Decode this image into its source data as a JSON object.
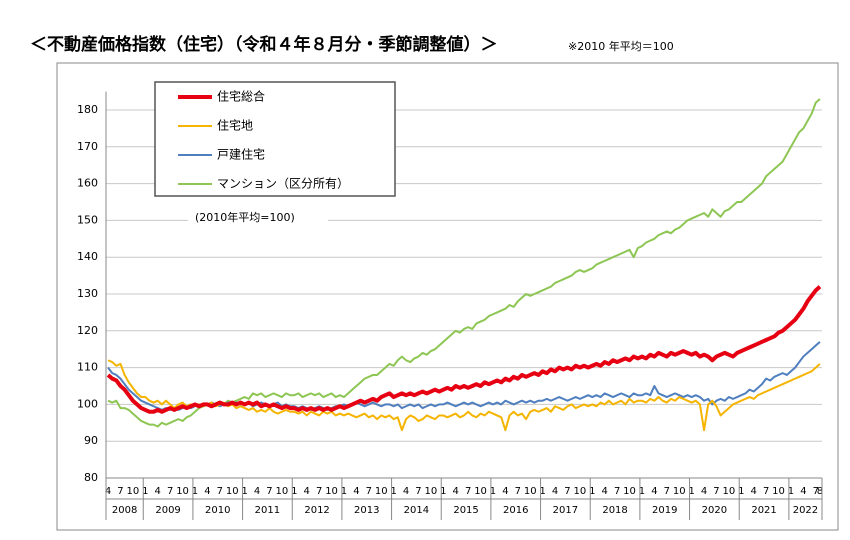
{
  "chart_data": {
    "type": "line",
    "title": "＜不動産価格指数（住宅）（令和４年８月分・季節調整値）＞",
    "subtitle": "※2010 年平均＝100",
    "annotation": "(2010年平均=100)",
    "categories": [
      "4",
      null,
      null,
      "7",
      null,
      null,
      "10",
      null,
      null,
      "1",
      null,
      null,
      "4",
      null,
      null,
      "7",
      null,
      null,
      "10",
      null,
      null,
      "1",
      null,
      null,
      "4",
      null,
      null,
      "7",
      null,
      null,
      "10",
      null,
      null,
      "1",
      null,
      null,
      "4",
      null,
      null,
      "7",
      null,
      null,
      "10",
      null,
      null,
      "1",
      null,
      null,
      "4",
      null,
      null,
      "7",
      null,
      null,
      "10",
      null,
      null,
      "1",
      null,
      null,
      "4",
      null,
      null,
      "7",
      null,
      null,
      "10",
      null,
      null,
      "1",
      null,
      null,
      "4",
      null,
      null,
      "7",
      null,
      null,
      "10",
      null,
      null,
      "1",
      null,
      null,
      "4",
      null,
      null,
      "7",
      null,
      null,
      "10",
      null,
      null,
      "1",
      null,
      null,
      "4",
      null,
      null,
      "7",
      null,
      null,
      "10",
      null,
      null,
      "1",
      null,
      null,
      "4",
      null,
      null,
      "7",
      null,
      null,
      "10",
      null,
      null,
      "1",
      null,
      null,
      "4",
      null,
      null,
      "7",
      null,
      null,
      "10",
      null,
      null,
      "1",
      null,
      null,
      "4",
      null,
      null,
      "7",
      null,
      null,
      "10",
      null,
      null,
      "1",
      null,
      null,
      "4",
      null,
      null,
      "7",
      null,
      null,
      "10",
      null,
      null,
      "1",
      null,
      null,
      "4",
      null,
      null,
      "7",
      null,
      null,
      "10",
      null,
      null,
      "1",
      null,
      null,
      "4",
      null,
      null,
      "7",
      "8"
    ],
    "years": [
      "2008",
      "2009",
      "2010",
      "2011",
      "2012",
      "2013",
      "2014",
      "2015",
      "2016",
      "2017",
      "2018",
      "2019",
      "2020",
      "2021",
      "2022"
    ],
    "ylim": [
      80,
      185
    ],
    "yticks": [
      80,
      90,
      100,
      110,
      120,
      130,
      140,
      150,
      160,
      170,
      180
    ],
    "grid": true,
    "series": [
      {
        "name": "住宅総合",
        "color": "#e60012",
        "width": 4,
        "values": [
          108,
          107,
          106.5,
          105,
          104,
          102.5,
          101,
          100,
          99,
          98.5,
          98,
          98,
          98.5,
          98,
          98.5,
          99,
          98.5,
          99,
          99.5,
          99,
          99.5,
          100,
          99.5,
          100,
          100,
          99.5,
          100,
          100.5,
          100,
          100,
          100.5,
          100,
          100.5,
          100,
          100.5,
          100,
          100.5,
          99.5,
          100,
          99.5,
          100,
          99.5,
          99,
          99.5,
          99,
          99,
          98.5,
          99,
          98.5,
          99,
          98.5,
          99,
          98.5,
          99,
          98.5,
          99,
          99.5,
          99,
          99.5,
          100,
          100.5,
          101,
          100.5,
          101,
          101.5,
          101,
          102,
          102.5,
          103,
          102,
          102.5,
          103,
          102.5,
          103,
          102.5,
          103,
          103.5,
          103,
          103.5,
          104,
          103.5,
          104,
          104.5,
          104,
          105,
          104.5,
          105,
          104.5,
          105,
          105.5,
          105,
          106,
          105.5,
          106,
          106.5,
          106,
          107,
          106.5,
          107.5,
          107,
          108,
          107.5,
          108,
          108.5,
          108,
          109,
          108.5,
          109.5,
          109,
          110,
          109.5,
          110,
          109.5,
          110.5,
          110,
          110.5,
          110,
          110.5,
          111,
          110.5,
          111.5,
          111,
          112,
          111.5,
          112,
          112.5,
          112,
          113,
          112.5,
          113,
          112.5,
          113.5,
          113,
          114,
          113.5,
          113,
          114,
          113.5,
          114,
          114.5,
          114,
          113.5,
          114,
          113,
          113.5,
          113,
          112,
          113,
          113.5,
          114,
          113.5,
          113,
          114,
          114.5,
          115,
          115.5,
          116,
          116.5,
          117,
          117.5,
          118,
          118.5,
          119.5,
          120,
          121,
          122,
          123,
          124.5,
          126,
          128,
          129.5,
          131,
          132
        ]
      },
      {
        "name": "住宅地",
        "color": "#f5b400",
        "width": 2,
        "values": [
          112,
          111.5,
          110.5,
          111,
          108,
          106,
          104.5,
          103,
          102,
          102,
          101,
          100.5,
          101,
          100,
          101,
          100,
          99,
          100,
          100.5,
          99.5,
          100,
          99.5,
          100,
          99.5,
          100,
          100.5,
          99.5,
          100,
          100.5,
          99.5,
          100,
          99,
          99.5,
          99,
          98.5,
          99,
          98,
          98.5,
          98,
          99,
          98,
          97.5,
          98,
          98.5,
          98,
          98,
          97.5,
          98,
          97,
          98,
          97.5,
          97,
          98,
          97.5,
          98,
          97,
          97.5,
          97,
          97.5,
          97,
          96.5,
          97,
          97.5,
          96.5,
          97,
          96,
          97,
          96.5,
          97,
          96,
          96.5,
          93,
          96,
          97,
          96.5,
          95.5,
          96,
          97,
          96.5,
          96,
          97,
          97,
          96.5,
          97,
          97.5,
          96.5,
          97,
          98,
          97,
          96.5,
          97.5,
          97,
          98,
          97.5,
          97,
          96.5,
          93,
          97,
          98,
          97,
          97.5,
          96,
          98,
          98.5,
          98,
          98.5,
          99,
          98,
          99.5,
          99,
          98.5,
          99.5,
          100,
          99,
          99.5,
          100,
          99.5,
          100,
          99.5,
          100.5,
          100,
          101,
          100,
          100.5,
          101,
          100,
          101.5,
          100.5,
          101,
          101,
          100.5,
          101.5,
          101,
          102,
          101,
          100.5,
          101.5,
          101,
          102,
          101.5,
          101,
          100.5,
          101,
          100,
          93,
          100,
          101,
          99.5,
          97,
          98,
          99,
          100,
          100.5,
          101,
          101.5,
          102,
          101.5,
          102.5,
          103,
          103.5,
          104,
          104.5,
          105,
          105.5,
          106,
          106.5,
          107,
          107.5,
          108,
          108.5,
          109,
          110,
          111
        ]
      },
      {
        "name": "戸建住宅",
        "color": "#4f7fbf",
        "width": 2,
        "values": [
          110,
          108.5,
          108,
          107,
          105.5,
          104,
          103,
          102,
          101,
          100.5,
          100,
          99.5,
          99,
          98.5,
          99,
          98.5,
          99,
          98.5,
          99,
          99.5,
          99,
          99.5,
          100,
          99.5,
          100,
          100.5,
          100,
          99.5,
          100,
          100.5,
          100,
          100.5,
          100,
          100,
          100.5,
          99.5,
          100,
          100.5,
          100,
          99.5,
          100,
          100.5,
          99.5,
          100,
          99.5,
          99.5,
          99,
          99.5,
          99,
          98.5,
          99,
          99.5,
          99,
          98.5,
          99,
          99.5,
          99.5,
          100,
          99.5,
          100,
          100.5,
          100,
          99.5,
          100,
          100.5,
          100,
          99.5,
          100,
          100,
          99.5,
          100,
          99,
          99.5,
          100,
          99.5,
          100,
          99,
          99.5,
          100,
          99.5,
          100,
          100,
          100.5,
          100,
          99.5,
          100,
          100.5,
          100,
          100.5,
          100,
          99.5,
          100,
          100.5,
          100,
          100.5,
          100,
          101,
          100.5,
          100,
          100.5,
          101,
          100.5,
          101,
          100.5,
          101,
          101,
          101.5,
          101,
          101.5,
          102,
          101.5,
          101,
          101.5,
          102,
          101.5,
          102,
          102.5,
          102,
          102.5,
          102,
          103,
          102.5,
          102,
          102.5,
          103,
          102.5,
          102,
          103,
          102.5,
          102.5,
          103,
          102.5,
          105,
          103,
          102.5,
          102,
          102.5,
          103,
          102.5,
          102,
          102.5,
          102,
          102.5,
          102,
          101,
          101.5,
          100,
          101,
          101.5,
          101,
          102,
          101.5,
          102,
          102.5,
          103,
          104,
          103.5,
          104.5,
          105.5,
          107,
          106.5,
          107.5,
          108,
          108.5,
          108,
          109,
          110,
          111.5,
          113,
          114,
          115,
          116,
          117
        ]
      },
      {
        "name": "マンション（区分所有）",
        "color": "#8dc653",
        "width": 2,
        "values": [
          101,
          100.5,
          101,
          99,
          99,
          98.5,
          97.5,
          96.5,
          95.5,
          95,
          94.5,
          94.5,
          94,
          95,
          94.5,
          95,
          95.5,
          96,
          95.5,
          96.5,
          97,
          98,
          99,
          99.5,
          100,
          99.5,
          100,
          100.5,
          100,
          101,
          100.5,
          101,
          101.5,
          102,
          101.5,
          103,
          102.5,
          103,
          102,
          102.5,
          103,
          102.5,
          102,
          103,
          102.5,
          102.5,
          103,
          102,
          102.5,
          103,
          102.5,
          103,
          102,
          102.5,
          103,
          102,
          102.5,
          102,
          103,
          104,
          105,
          106,
          107,
          107.5,
          108,
          108,
          109,
          110,
          111,
          110.5,
          112,
          113,
          112,
          111.5,
          112.5,
          113,
          114,
          113.5,
          114.5,
          115,
          116,
          117,
          118,
          119,
          120,
          119.5,
          120.5,
          121,
          120.5,
          122,
          122.5,
          123,
          124,
          124.5,
          125,
          125.5,
          126,
          127,
          126.5,
          128,
          129,
          130,
          129.5,
          130,
          130.5,
          131,
          131.5,
          132,
          133,
          133.5,
          134,
          134.5,
          135,
          136,
          136.5,
          136,
          136.5,
          137,
          138,
          138.5,
          139,
          139.5,
          140,
          140.5,
          141,
          141.5,
          142,
          140,
          142.5,
          143,
          144,
          144.5,
          145,
          146,
          146.5,
          147,
          146.5,
          147.5,
          148,
          149,
          150,
          150.5,
          151,
          151.5,
          152,
          151,
          153,
          152,
          151,
          152.5,
          153,
          154,
          155,
          155,
          156,
          157,
          158,
          159,
          160,
          162,
          163,
          164,
          165,
          166,
          168,
          170,
          172,
          174,
          175,
          177,
          179,
          182,
          183
        ]
      }
    ]
  }
}
